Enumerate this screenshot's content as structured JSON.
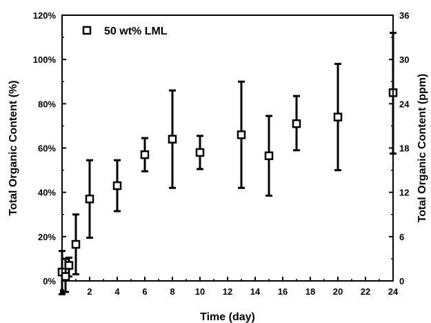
{
  "chart_data": {
    "type": "scatter",
    "title": "",
    "xlabel": "Time (day)",
    "ylabel_left": "Total Organic Content (%)",
    "ylabel_right": "Total Organic Content (ppm)",
    "xlim": [
      0,
      24
    ],
    "ylim_left": [
      0,
      120
    ],
    "ylim_right": [
      0,
      36
    ],
    "x_ticks": [
      "0",
      "2",
      "4",
      "6",
      "8",
      "10",
      "12",
      "14",
      "16",
      "18",
      "20",
      "22",
      "24"
    ],
    "y_left_ticks": [
      "0%",
      "20%",
      "40%",
      "60%",
      "80%",
      "100%",
      "120%"
    ],
    "y_right_ticks": [
      "0",
      "6",
      "12",
      "18",
      "24",
      "30",
      "36"
    ],
    "grid": false,
    "legend_position": "top-left",
    "series": [
      {
        "name": "50 wt% LML",
        "marker": "open-square",
        "x": [
          0,
          0.25,
          0.5,
          1,
          2,
          4,
          6,
          8,
          10,
          13,
          15,
          17,
          20,
          24
        ],
        "y": [
          4,
          2,
          7,
          16.5,
          37,
          43,
          57,
          64,
          58,
          66,
          56.5,
          71,
          74,
          85
        ],
        "err_low": [
          -6,
          -5,
          2,
          3,
          19.5,
          31.5,
          49.5,
          42,
          50.5,
          42,
          38.5,
          59,
          50,
          57.5
        ],
        "err_high": [
          13.5,
          10,
          10.5,
          30,
          54.5,
          54.5,
          64.5,
          86,
          65.5,
          90,
          74.5,
          83.5,
          98,
          112
        ]
      }
    ]
  }
}
